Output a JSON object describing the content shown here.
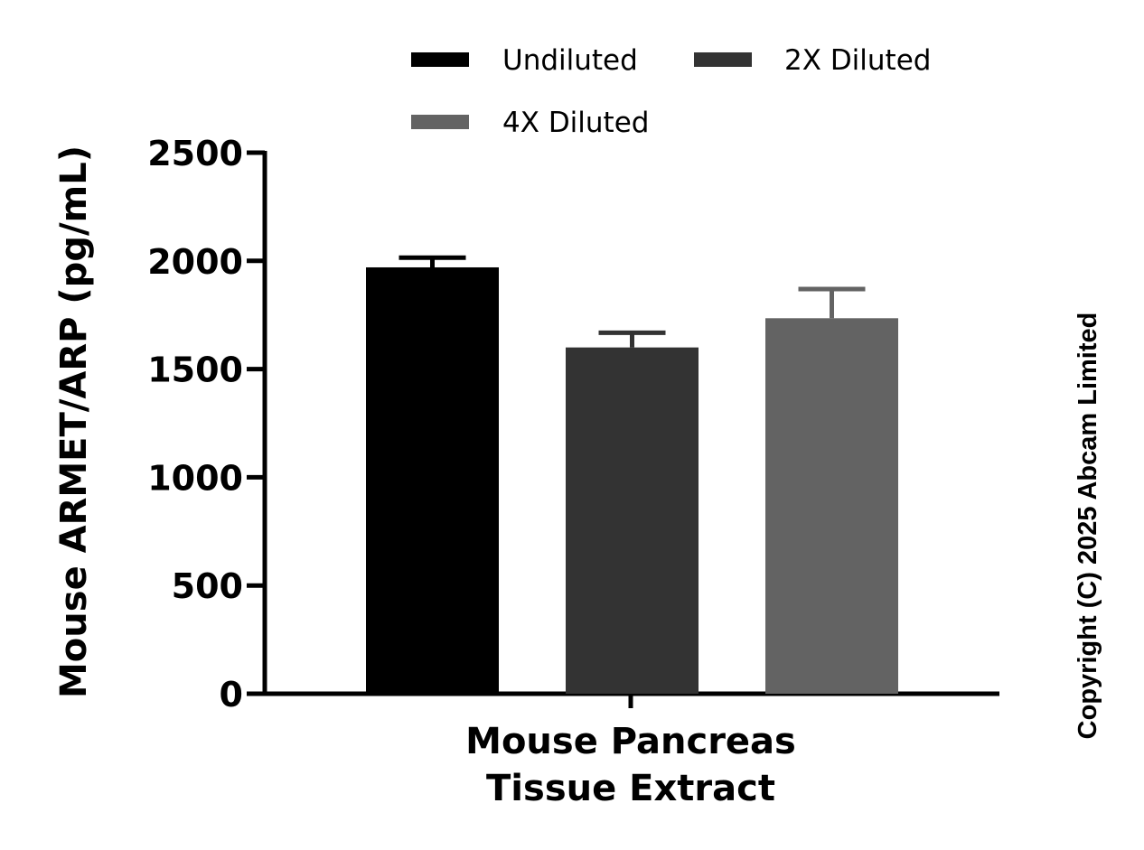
{
  "chart_data": {
    "type": "bar",
    "title": "",
    "categories": [
      "Mouse Pancreas Tissue Extract"
    ],
    "category_lines": [
      "Mouse Pancreas",
      "Tissue Extract"
    ],
    "series": [
      {
        "name": "Undiluted",
        "values": [
          1970
        ],
        "error": [
          45
        ],
        "color": "#000000"
      },
      {
        "name": "2X Diluted",
        "values": [
          1600
        ],
        "error": [
          68
        ],
        "color": "#333333"
      },
      {
        "name": "4X Diluted",
        "values": [
          1735
        ],
        "error": [
          135
        ],
        "color": "#636363"
      }
    ],
    "xlabel": "Mouse Pancreas Tissue Extract",
    "ylabel": "Mouse ARMET/ARP (pg/mL)",
    "ylim": [
      0,
      2500
    ],
    "yticks": [
      0,
      500,
      1000,
      1500,
      2000,
      2500
    ],
    "ytick_labels": [
      "0",
      "500",
      "1000",
      "1500",
      "2000",
      "2500"
    ],
    "grid": false,
    "legend_position": "top"
  },
  "copyright": "Copyright (C) 2025 Abcam Limited"
}
